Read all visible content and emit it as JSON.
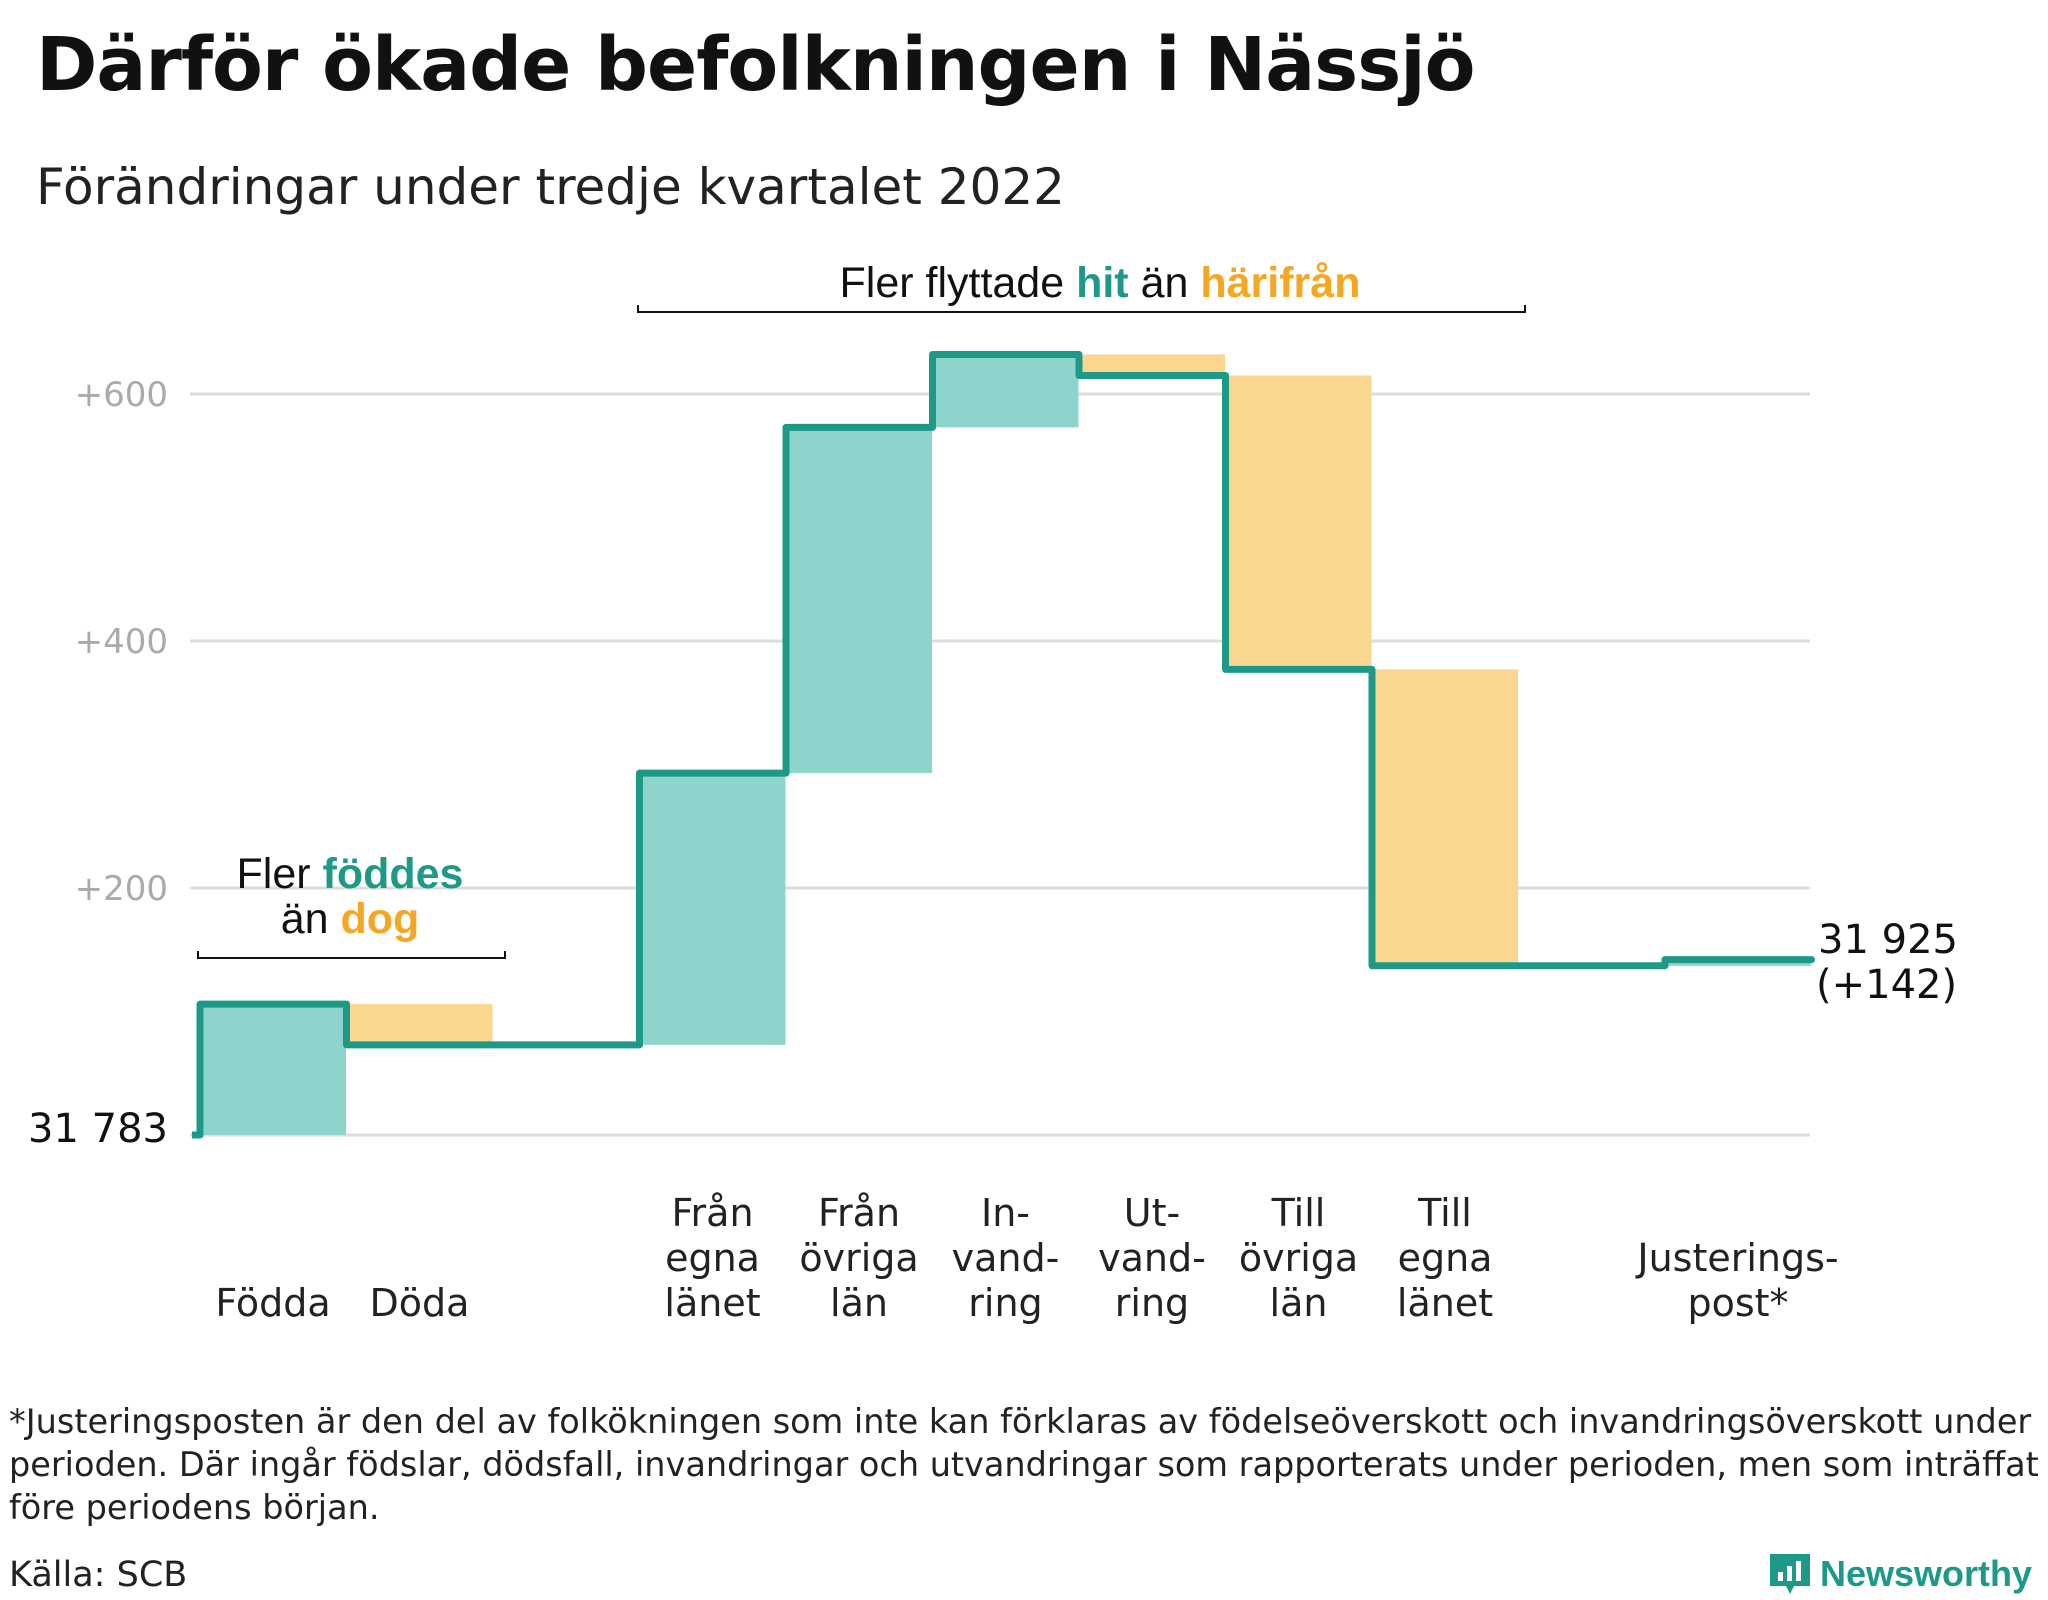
{
  "title": "Därför ökade befolkningen i Nässjö",
  "subtitle": "Förändringar under tredje kvartalet 2022",
  "chart_data": {
    "type": "waterfall",
    "baseline": 31783,
    "baseline_label": "31 783",
    "end_value": 31925,
    "end_label": "31 925",
    "end_change_label": "(+142)",
    "y_ticks": [
      {
        "value": 600,
        "label": "+600"
      },
      {
        "value": 400,
        "label": "+400"
      },
      {
        "value": 200,
        "label": "+200"
      }
    ],
    "ylim": [
      0,
      640
    ],
    "grid": true,
    "steps": [
      {
        "label": [
          "Födda"
        ],
        "change": 106
      },
      {
        "label": [
          "Döda"
        ],
        "change": -33
      },
      {
        "label": [],
        "change": 0
      },
      {
        "label": [
          "Från",
          "egna",
          "länet"
        ],
        "change": 220
      },
      {
        "label": [
          "Från",
          "övriga",
          "län"
        ],
        "change": 280
      },
      {
        "label": [
          "In-",
          "vand-",
          "ring"
        ],
        "change": 59
      },
      {
        "label": [
          "Ut-",
          "vand-",
          "ring"
        ],
        "change": -17
      },
      {
        "label": [
          "Till",
          "övriga",
          "län"
        ],
        "change": -238
      },
      {
        "label": [
          "Till",
          "egna",
          "länet"
        ],
        "change": -240
      },
      {
        "label": [],
        "change": 0
      },
      {
        "label": [
          "Justerings-",
          "post*"
        ],
        "change": 5
      }
    ],
    "annotations": [
      {
        "lines": [
          [
            "Fler ",
            "föddes",
            ""
          ],
          [
            "än ",
            "dog",
            ""
          ]
        ]
      },
      {
        "lines": [
          [
            "Fler flyttade ",
            "hit",
            " än ",
            "härifrån"
          ]
        ]
      }
    ],
    "colors": {
      "line": "#1e9988",
      "increase_fill": "#8dd5cc",
      "decrease_fill": "#fad68e",
      "orange_text": "#f5a623",
      "grid": "#dddddd",
      "tick_text": "#aaaaaa"
    }
  },
  "footnote": "*Justeringsposten är den del av folkökningen som inte kan förklaras av födelseöverskott och invandringsöverskott under perioden. Där ingår födslar, dödsfall, invandringar och utvandringar som rapporterats under perioden, men som inträffat före periodens början.",
  "source": "Källa: SCB",
  "logo": {
    "name": "Newsworthy"
  }
}
